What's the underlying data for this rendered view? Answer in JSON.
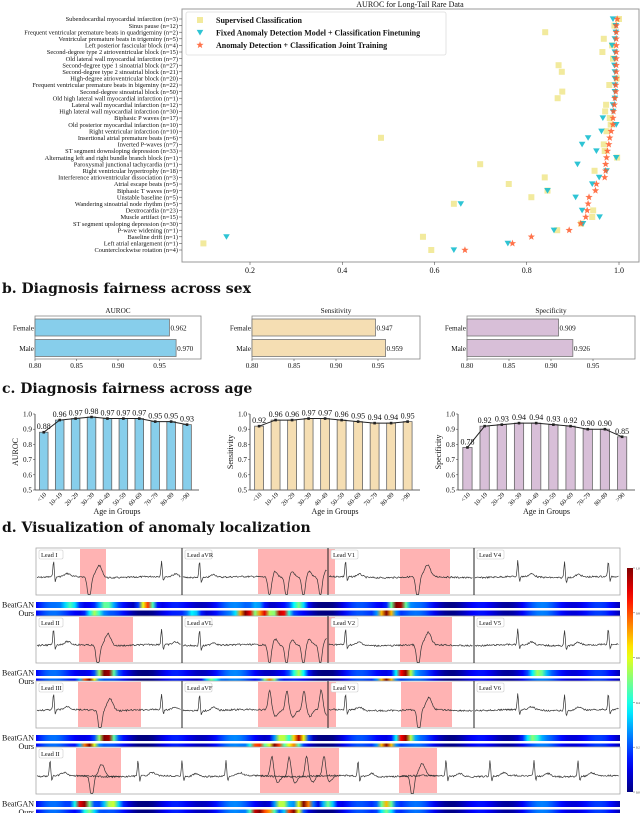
{
  "sections": {
    "b": "b.  Diagnosis fairness across sex",
    "c": "c.  Diagnosis fairness across age",
    "d": "d.  Visualization of anomaly localization"
  },
  "chart_data": [
    {
      "type": "scatter",
      "title": "AUROC for Long-Tail Rare Data",
      "xlim": [
        0.05,
        1.04
      ],
      "xticks": [
        "0.2",
        "0.4",
        "0.6",
        "0.8",
        "1.0"
      ],
      "legend": "top-left",
      "categories": [
        "Subendocardial myocardial infarction (n=3)",
        "Sinus pause (n=12)",
        "Frequent ventricular premature beats in quadrigeminy (n=2)",
        "Ventricular premature beats in trigeminy (n=5)",
        "Left posterior fascicular block (n=4)",
        "Second-degree type 2 atrioventricular block (n=15)",
        "Old lateral wall myocardial infarction (n=7)",
        "Second-degree type 1 sinoatrial block (n=27)",
        "Second-degree type 2 sinoatrial block (n=21)",
        "High-degree atrioventricular block (n=20)",
        "Frequent ventricular premature beats in bigeminy (n=22)",
        "Second-degree sinoatrial block (n=50)",
        "Old high lateral wall myocardial infarction (n=1)",
        "Lateral wall myocardial infarction (n=12)",
        "High lateral wall myocardial infarction (n=30)",
        "Biphasic P waves (n=17)",
        "Old posterior myocardial infarction (n=10)",
        "Right ventricular infarction (n=10)",
        "Insertional atrial premature beats (n=6)",
        "Inverted P-waves (n=7)",
        "ST segment downsloping depression (n=33)",
        "Alternating left and right bundle branch block (n=1)",
        "Paroxysmal junctional tachycardia (n=1)",
        "Right ventricular hypertrophy (n=18)",
        "Interference atrioventricular dissociation (n=3)",
        "Atrial escape beats (n=5)",
        "Biphasic T waves (n=9)",
        "Unstable baseline (n=5)",
        "Wandering sinoatrial node rhythm (n=5)",
        "Dextrocardia (n=23)",
        "Muscle artifact (n=15)",
        "ST segment upsloping depression (n=30)",
        "P-wave widening (n=1)",
        "Baseline drift (n=1)",
        "Left atrial enlargement (n=1)",
        "Counterclockwise rotation (n=4)"
      ],
      "series": [
        {
          "name": "Supervised Classification",
          "marker": "square",
          "color": "#f0e68c",
          "values": [
            1.0,
            0.99,
            0.84,
            0.967,
            0.985,
            0.964,
            0.987,
            0.869,
            0.876,
            0.995,
            0.979,
            0.877,
            0.867,
            0.972,
            0.97,
            0.98,
            0.982,
            0.973,
            0.484,
            0.967,
            0.969,
            0.996,
            0.699,
            0.947,
            0.839,
            0.761,
            0.845,
            0.81,
            0.642,
            0.944,
            0.942,
            0.918,
            0.866,
            0.575,
            0.099,
            0.593
          ]
        },
        {
          "name": "Fixed Anomaly Detection Model + Classification Finetuning",
          "marker": "triangle-down",
          "color": "#17becf",
          "values": [
            0.987,
            0.993,
            0.993,
            0.991,
            0.985,
            0.991,
            0.99,
            0.99,
            0.991,
            0.991,
            0.991,
            0.991,
            0.991,
            0.987,
            0.987,
            0.965,
            0.994,
            0.962,
            0.933,
            0.92,
            0.951,
            0.994,
            0.91,
            0.973,
            0.957,
            0.942,
            0.845,
            0.906,
            0.657,
            0.92,
            0.958,
            0.922,
            0.859,
            0.149,
            0.759,
            0.642
          ]
        },
        {
          "name": "Anomaly Detection + Classification Joint Training",
          "marker": "star",
          "color": "#ff5a2c",
          "values": [
            0.996,
            0.994,
            0.994,
            0.994,
            0.994,
            0.994,
            0.994,
            0.994,
            0.994,
            0.994,
            0.993,
            0.993,
            0.991,
            0.99,
            0.988,
            0.987,
            0.987,
            0.983,
            0.98,
            0.978,
            0.975,
            0.973,
            0.971,
            0.971,
            0.969,
            0.951,
            0.949,
            0.935,
            0.933,
            0.931,
            0.928,
            0.917,
            0.892,
            0.81,
            0.769,
            0.666
          ]
        }
      ]
    },
    {
      "type": "bar",
      "orientation": "horizontal",
      "title": "AUROC",
      "categories": [
        "Female",
        "Male"
      ],
      "values": [
        0.962,
        0.97
      ],
      "labels": [
        "0.962",
        "0.970"
      ],
      "xlim": [
        0.8,
        1.0
      ],
      "xticks": [
        "0.80",
        "0.85",
        "0.90",
        "0.95"
      ],
      "color": "#87ceeb"
    },
    {
      "type": "bar",
      "orientation": "horizontal",
      "title": "Sensitivity",
      "categories": [
        "Female",
        "Male"
      ],
      "values": [
        0.947,
        0.959
      ],
      "labels": [
        "0.947",
        "0.959"
      ],
      "xlim": [
        0.8,
        1.0
      ],
      "xticks": [
        "0.80",
        "0.85",
        "0.90",
        "0.95"
      ],
      "color": "#f5deb3"
    },
    {
      "type": "bar",
      "orientation": "horizontal",
      "title": "Specificity",
      "categories": [
        "Female",
        "Male"
      ],
      "values": [
        0.909,
        0.926
      ],
      "labels": [
        "0.909",
        "0.926"
      ],
      "xlim": [
        0.8,
        1.0
      ],
      "xticks": [
        "0.80",
        "0.85",
        "0.90",
        "0.95"
      ],
      "color": "#d8bfd8"
    },
    {
      "type": "bar",
      "ylabel": "AUROC",
      "xlabel": "Age in Groups",
      "categories": [
        "<10",
        "10–19",
        "20–29",
        "30–39",
        "40–49",
        "50–59",
        "60–69",
        "70–79",
        "80–89",
        ">90"
      ],
      "values": [
        0.88,
        0.96,
        0.97,
        0.98,
        0.97,
        0.97,
        0.97,
        0.95,
        0.95,
        0.93
      ],
      "labels": [
        "0.88",
        "0.96",
        "0.97",
        "0.98",
        "0.97",
        "0.97",
        "0.97",
        "0.95",
        "0.95",
        "0.93"
      ],
      "ylim": [
        0.5,
        1.0
      ],
      "yticks": [
        "0.5",
        "0.6",
        "0.7",
        "0.8",
        "0.9",
        "1.0"
      ],
      "color": "#87ceeb"
    },
    {
      "type": "bar",
      "ylabel": "Sensitivity",
      "xlabel": "Age in Groups",
      "categories": [
        "<10",
        "10–19",
        "20–29",
        "30–39",
        "40–49",
        "50–59",
        "60–69",
        "70–79",
        "80–89",
        ">90"
      ],
      "values": [
        0.92,
        0.96,
        0.96,
        0.97,
        0.97,
        0.96,
        0.95,
        0.94,
        0.94,
        0.95
      ],
      "labels": [
        "0.92",
        "0.96",
        "0.96",
        "0.97",
        "0.97",
        "0.96",
        "0.95",
        "0.94",
        "0.94",
        "0.95"
      ],
      "ylim": [
        0.5,
        1.0
      ],
      "yticks": [
        "0.5",
        "0.6",
        "0.7",
        "0.8",
        "0.9",
        "1.0"
      ],
      "color": "#f5deb3"
    },
    {
      "type": "bar",
      "ylabel": "Specificity",
      "xlabel": "Age in Groups",
      "categories": [
        "<10",
        "10–19",
        "20–29",
        "30–39",
        "40–49",
        "50–59",
        "60–69",
        "70–79",
        "80–89",
        ">90"
      ],
      "values": [
        0.78,
        0.92,
        0.93,
        0.94,
        0.94,
        0.93,
        0.92,
        0.9,
        0.9,
        0.85
      ],
      "labels": [
        "0.78",
        "0.92",
        "0.93",
        "0.94",
        "0.94",
        "0.93",
        "0.92",
        "0.90",
        "0.90",
        "0.85"
      ],
      "ylim": [
        0.5,
        1.0
      ],
      "yticks": [
        "0.5",
        "0.6",
        "0.7",
        "0.8",
        "0.9",
        "1.0"
      ],
      "color": "#d8bfd8"
    }
  ],
  "localization": {
    "rows": [
      [
        "Lead I",
        "Lead aVR",
        "Lead V1",
        "Lead V4"
      ],
      [
        "Lead II",
        "Lead aVL",
        "Lead V2",
        "Lead V5"
      ],
      [
        "Lead III",
        "Lead aVF",
        "Lead V3",
        "Lead V6"
      ],
      [
        "Lead II"
      ]
    ],
    "strip_labels": [
      "BeatGAN",
      "Ours"
    ],
    "highlight_color": "#ffb3b3",
    "colormap": "jet",
    "colorbar_ticks": [
      "0.0",
      "0.2",
      "0.4",
      "0.6",
      "0.8",
      "1.0"
    ]
  }
}
